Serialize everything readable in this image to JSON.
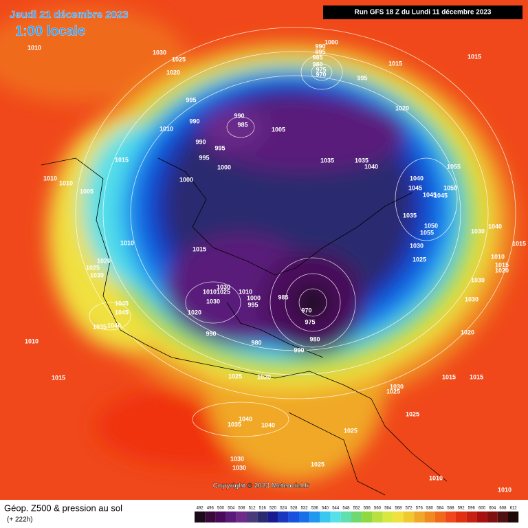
{
  "header": {
    "date": "Jeudi 21 décembre 2023",
    "time": "1:00 locale",
    "run": "Run GFS 18 Z du Lundi 11 décembre 2023"
  },
  "footer": {
    "title": "Géop. Z500 & pression au sol",
    "lead": "(+ 222h)",
    "copyright": "Copyright © 2023 Meteociel.fr"
  },
  "colorbar": {
    "labels": [
      492,
      496,
      500,
      504,
      508,
      512,
      516,
      520,
      524,
      528,
      532,
      536,
      540,
      544,
      548,
      552,
      556,
      560,
      564,
      568,
      572,
      576,
      580,
      584,
      588,
      592,
      596,
      600,
      604,
      608,
      612
    ]
  },
  "pressure_labels": [
    1010,
    1030,
    1025,
    1020,
    1000,
    990,
    995,
    985,
    980,
    975,
    970,
    995,
    1015,
    1015,
    995,
    1020,
    990,
    985,
    1005,
    1010,
    990,
    990,
    995,
    995,
    1000,
    1035,
    1035,
    1040,
    1015,
    1055,
    1010,
    1010,
    1005,
    1000,
    1040,
    1045,
    1050,
    1045,
    1045,
    1035,
    1050,
    1055,
    1030,
    1040,
    1015,
    1010,
    1015,
    1030,
    1025,
    1020,
    1025,
    1030,
    1010,
    1015,
    1020,
    1030,
    1030,
    1010,
    1025,
    1010,
    1030,
    1000,
    995,
    985,
    1045,
    1045,
    970,
    975,
    1030,
    1020,
    1040,
    1035,
    990,
    980,
    980,
    1020,
    990,
    1010,
    1015,
    1025,
    1020,
    1015,
    1015,
    1030,
    1025,
    1025,
    1040,
    1035,
    1040,
    1025,
    1030,
    1030,
    1025,
    1010,
    1010
  ]
}
